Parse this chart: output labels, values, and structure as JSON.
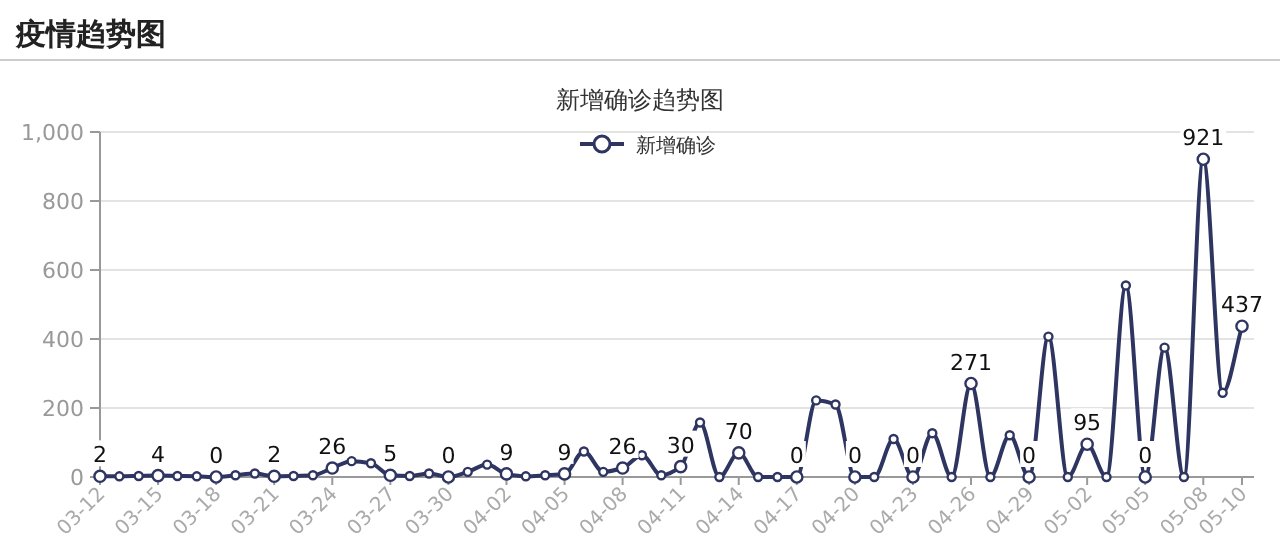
{
  "chart_data": {
    "type": "line",
    "title": "疫情趋势图",
    "subtitle": "新增确诊趋势图",
    "categories": [
      "03-12",
      null,
      null,
      "03-15",
      null,
      null,
      "03-18",
      null,
      null,
      "03-21",
      null,
      null,
      "03-24",
      null,
      null,
      "03-27",
      null,
      null,
      "03-30",
      null,
      null,
      "04-02",
      null,
      null,
      "04-05",
      null,
      null,
      "04-08",
      null,
      null,
      "04-11",
      null,
      null,
      "04-14",
      null,
      null,
      "04-17",
      null,
      null,
      "04-20",
      null,
      null,
      "04-23",
      null,
      null,
      "04-26",
      null,
      null,
      "04-29",
      null,
      null,
      "05-02",
      null,
      null,
      "05-05",
      null,
      null,
      "05-08",
      null,
      "05-10"
    ],
    "series": [
      {
        "name": "新增确诊",
        "color": "#2f3561",
        "values": [
          2,
          2,
          3,
          4,
          3,
          2,
          0,
          5,
          10,
          2,
          3,
          5,
          26,
          46,
          40,
          5,
          3,
          10,
          0,
          15,
          36,
          9,
          2,
          5,
          9,
          74,
          15,
          26,
          63,
          5,
          30,
          158,
          0,
          70,
          0,
          0,
          0,
          222,
          210,
          0,
          0,
          110,
          0,
          127,
          0,
          271,
          0,
          121,
          0,
          407,
          0,
          95,
          0,
          555,
          0,
          375,
          0,
          921,
          244,
          437
        ],
        "value_labels": [
          "2",
          null,
          null,
          "4",
          null,
          null,
          "0",
          null,
          null,
          "2",
          null,
          null,
          "26",
          null,
          null,
          "5",
          null,
          null,
          "0",
          null,
          null,
          "9",
          null,
          null,
          "9",
          null,
          null,
          "26",
          null,
          null,
          "30",
          null,
          null,
          "70",
          null,
          null,
          "0",
          null,
          null,
          "0",
          null,
          null,
          "0",
          null,
          null,
          "271",
          null,
          null,
          "0",
          null,
          null,
          "95",
          null,
          null,
          "0",
          null,
          null,
          "921",
          null,
          "437"
        ]
      }
    ],
    "ylim": [
      0,
      1000
    ],
    "yticks": [
      0,
      200,
      400,
      600,
      800,
      {
        "value": 1000,
        "label": "1,000"
      }
    ],
    "grid": "y",
    "legend": "top",
    "marker": "circle"
  }
}
